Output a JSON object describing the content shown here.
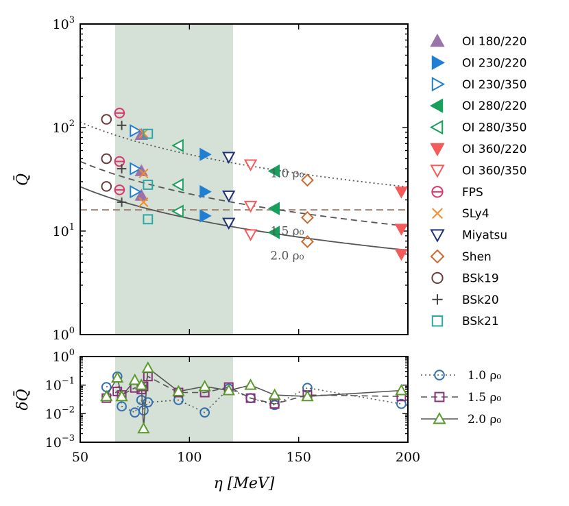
{
  "chart_data": [
    {
      "type": "scatter",
      "panel": "top",
      "ylabel": "Q̄",
      "yscale": "log",
      "ylim": [
        1,
        1000
      ],
      "xlim": [
        50,
        200
      ],
      "xticks": [
        50,
        100,
        150,
        200
      ],
      "yticks": [
        {
          "value": 1,
          "base": "10",
          "exp": "0"
        },
        {
          "value": 10,
          "base": "10",
          "exp": "1"
        },
        {
          "value": 100,
          "base": "10",
          "exp": "2"
        },
        {
          "value": 1000,
          "base": "10",
          "exp": "3"
        }
      ],
      "shaded_region": {
        "x": [
          66,
          120
        ],
        "color": "#d5e0d7"
      },
      "horizontal_line": {
        "y": 16,
        "color": "#a08070",
        "style": "dashed"
      },
      "curves": [
        {
          "name": "rho1.0",
          "A": 6600,
          "p": 1.04,
          "color": "#555555",
          "style": "dotted",
          "label": "1.0 ρ₀",
          "label_at": [
            137,
            33
          ]
        },
        {
          "name": "rho1.5",
          "A": 2750,
          "p": 1.04,
          "color": "#555555",
          "style": "dashed",
          "label": "1.5 ρ₀",
          "label_at": [
            137,
            9.2
          ]
        },
        {
          "name": "rho2.0",
          "A": 1450,
          "p": 1.02,
          "color": "#555555",
          "style": "solid",
          "label": "2.0 ρ₀",
          "label_at": [
            137,
            5.3
          ]
        }
      ],
      "series": [
        {
          "name": "OI 180/220",
          "marker": "tri-up",
          "filled": true,
          "color": "#9b72aa",
          "points": [
            [
              78,
              85
            ],
            [
              78,
              38
            ],
            [
              78,
              22
            ]
          ]
        },
        {
          "name": "OI 230/220",
          "marker": "tri-right",
          "filled": true,
          "color": "#1f7fd2",
          "points": [
            [
              107,
              55
            ],
            [
              107,
              24
            ],
            [
              107,
              14
            ]
          ]
        },
        {
          "name": "OI 230/350",
          "marker": "tri-right",
          "filled": false,
          "color": "#1f7fd2",
          "points": [
            [
              75,
              93
            ],
            [
              75,
              40
            ],
            [
              75,
              24
            ]
          ]
        },
        {
          "name": "OI 280/220",
          "marker": "tri-left",
          "filled": true,
          "color": "#16a05c",
          "points": [
            [
              139,
              38
            ],
            [
              139,
              16.5
            ],
            [
              139,
              9.7
            ]
          ]
        },
        {
          "name": "OI 280/350",
          "marker": "tri-left",
          "filled": false,
          "color": "#16a05c",
          "points": [
            [
              95,
              67
            ],
            [
              95,
              28
            ],
            [
              95,
              15.5
            ]
          ]
        },
        {
          "name": "OI 360/220",
          "marker": "tri-down",
          "filled": true,
          "color": "#f45b5b",
          "points": [
            [
              197,
              24
            ],
            [
              197,
              10.5
            ],
            [
              197,
              6
            ]
          ]
        },
        {
          "name": "OI 360/350",
          "marker": "tri-down",
          "filled": false,
          "color": "#f45b5b",
          "points": [
            [
              128,
              44
            ],
            [
              128,
              17.5
            ],
            [
              128,
              9.3
            ]
          ]
        },
        {
          "name": "FPS",
          "marker": "circle-bar",
          "filled": false,
          "color": "#d6386e",
          "points": [
            [
              68,
              138
            ],
            [
              68,
              47
            ],
            [
              68,
              25
            ]
          ]
        },
        {
          "name": "SLy4",
          "marker": "x",
          "filled": false,
          "color": "#f28c28",
          "points": [
            [
              79,
              88
            ],
            [
              79,
              36
            ],
            [
              79,
              19
            ]
          ]
        },
        {
          "name": "Miyatsu",
          "marker": "tri-down",
          "filled": false,
          "color": "#1f2f7a",
          "points": [
            [
              118,
              52
            ],
            [
              118,
              22
            ],
            [
              118,
              12
            ]
          ]
        },
        {
          "name": "Shen",
          "marker": "diamond",
          "filled": false,
          "color": "#cc6a2e",
          "points": [
            [
              154,
              31
            ],
            [
              154,
              13.5
            ],
            [
              154,
              7.9
            ]
          ]
        },
        {
          "name": "BSk19",
          "marker": "circle",
          "filled": false,
          "color": "#6b3a3a",
          "points": [
            [
              62,
              120
            ],
            [
              62,
              50
            ],
            [
              62,
              27
            ]
          ]
        },
        {
          "name": "BSk20",
          "marker": "plus",
          "filled": false,
          "color": "#444444",
          "points": [
            [
              69,
              105
            ],
            [
              69,
              40
            ],
            [
              69,
              19
            ]
          ]
        },
        {
          "name": "BSk21",
          "marker": "square",
          "filled": false,
          "color": "#2aa7a7",
          "points": [
            [
              81,
              87
            ],
            [
              81,
              28
            ],
            [
              81,
              13
            ]
          ]
        }
      ]
    },
    {
      "type": "line",
      "panel": "bottom",
      "xlabel": "η [MeV]",
      "ylabel": "δQ̄",
      "yscale": "log",
      "ylim": [
        0.001,
        1
      ],
      "xlim": [
        50,
        200
      ],
      "xticks": [
        50,
        100,
        150,
        200
      ],
      "yticks": [
        {
          "value": 0.001,
          "base": "10",
          "exp": "−3"
        },
        {
          "value": 0.01,
          "base": "10",
          "exp": "−2"
        },
        {
          "value": 0.1,
          "base": "10",
          "exp": "−1"
        },
        {
          "value": 1,
          "base": "10",
          "exp": "0"
        }
      ],
      "shaded_region": {
        "x": [
          66,
          120
        ],
        "color": "#d5e0d7"
      },
      "series": [
        {
          "name": "1.0 ρ₀",
          "marker": "circle",
          "color": "#2f6fb0",
          "style": "dotted",
          "x": [
            62,
            67,
            69,
            75,
            78,
            79,
            81,
            95,
            107,
            118,
            128,
            139,
            154,
            197
          ],
          "y": [
            0.085,
            0.2,
            0.018,
            0.011,
            0.03,
            0.013,
            0.025,
            0.03,
            0.011,
            0.075,
            0.035,
            0.02,
            0.08,
            0.022
          ]
        },
        {
          "name": "1.5 ρ₀",
          "marker": "square",
          "color": "#8a2f78",
          "style": "dashed",
          "x": [
            62,
            67,
            69,
            75,
            78,
            79,
            81,
            95,
            107,
            118,
            128,
            139,
            154,
            197
          ],
          "y": [
            0.035,
            0.06,
            0.045,
            0.08,
            0.07,
            0.09,
            0.2,
            0.055,
            0.055,
            0.085,
            0.035,
            0.022,
            0.045,
            0.04
          ]
        },
        {
          "name": "2.0 ρ₀",
          "marker": "tri-up",
          "color": "#5a9a2a",
          "style": "solid",
          "x": [
            62,
            67,
            69,
            75,
            78,
            79,
            81,
            95,
            107,
            118,
            128,
            139,
            154,
            197
          ],
          "y": [
            0.04,
            0.18,
            0.04,
            0.15,
            0.1,
            0.003,
            0.4,
            0.06,
            0.09,
            0.065,
            0.1,
            0.045,
            0.04,
            0.065
          ]
        }
      ]
    }
  ]
}
